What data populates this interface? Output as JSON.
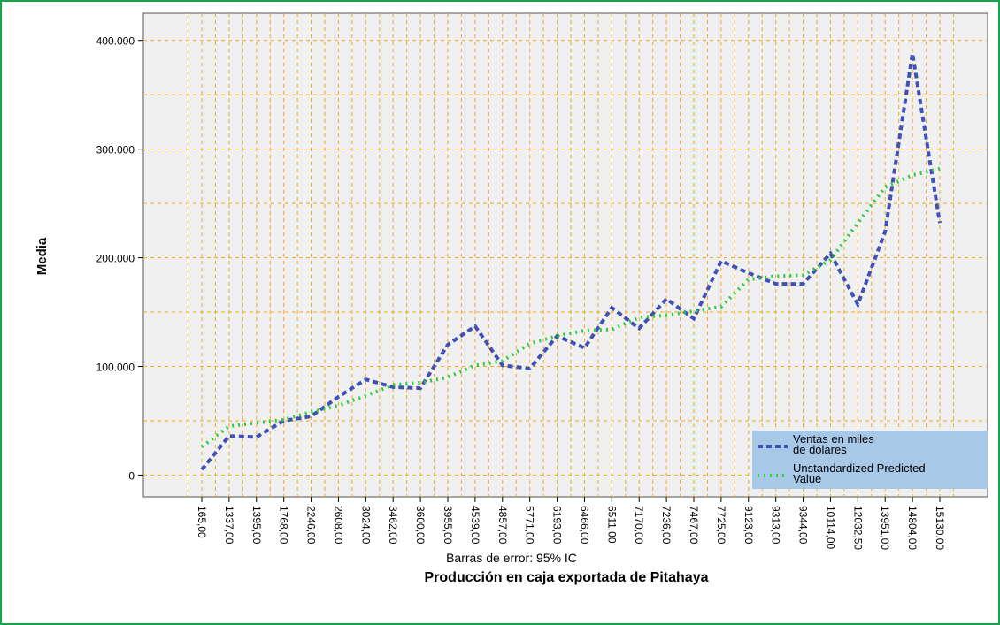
{
  "chart_data": {
    "type": "line",
    "y_label": "Media",
    "x_label": "Producción en caja exportada de Pitahaya",
    "note": "Barras de error: 95% IC",
    "categories": [
      "165,00",
      "1337,00",
      "1395,00",
      "1768,00",
      "2246,00",
      "2608,00",
      "3024,00",
      "3462,00",
      "3600,00",
      "3955,00",
      "4539,00",
      "4857,00",
      "5771,00",
      "6193,00",
      "6466,00",
      "6511,00",
      "7170,00",
      "7236,00",
      "7467,00",
      "7725,00",
      "9123,00",
      "9313,00",
      "9344,00",
      "10114,00",
      "12032,50",
      "13951,00",
      "14804,00",
      "15130,00"
    ],
    "series": [
      {
        "name": "Ventas en miles de dólares",
        "color": "#3f51b5",
        "dash": "6,4",
        "values": [
          5000,
          36000,
          35000,
          50000,
          54000,
          72000,
          88000,
          81000,
          80000,
          120000,
          137000,
          101000,
          98000,
          128000,
          117000,
          154000,
          135000,
          162000,
          144000,
          197000,
          186000,
          176000,
          176000,
          204000,
          157000,
          224000,
          388000,
          232000
        ]
      },
      {
        "name": "Unstandardized Predicted Value",
        "color": "#2ecc40",
        "dash": "2,5",
        "values": [
          26000,
          45000,
          48000,
          51000,
          58000,
          64000,
          73000,
          83000,
          85000,
          90000,
          101000,
          105000,
          121000,
          128000,
          133000,
          134000,
          145000,
          147000,
          151000,
          155000,
          180000,
          183000,
          184000,
          198000,
          232000,
          265000,
          276000,
          282000
        ]
      }
    ],
    "ylim": [
      -20000,
      425000
    ],
    "yticks": [
      {
        "value": 0,
        "label": "0"
      },
      {
        "value": 100000,
        "label": "100.000"
      },
      {
        "value": 200000,
        "label": "200.000"
      },
      {
        "value": 300000,
        "label": "300.000"
      },
      {
        "value": 400000,
        "label": "400.000"
      }
    ],
    "grid": true,
    "grid_color": "#f5a623",
    "legend": "lower right"
  }
}
